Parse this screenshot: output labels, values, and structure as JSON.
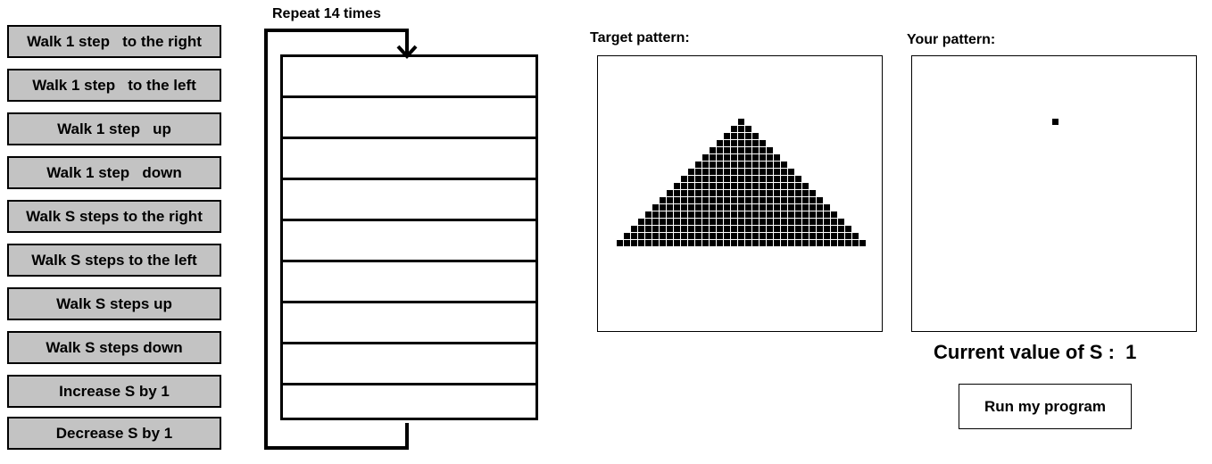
{
  "commands": [
    "Walk 1 step   to the right",
    "Walk 1 step   to the left",
    "Walk 1 step   up",
    "Walk 1 step   down",
    "Walk S steps to the right",
    "Walk S steps to the left",
    "Walk S steps up",
    "Walk S steps down",
    "Increase S by 1",
    "Decrease S by 1"
  ],
  "loop": {
    "label": "Repeat 14 times",
    "slots": [
      "",
      "",
      "",
      "",
      "",
      "",
      "",
      "",
      ""
    ]
  },
  "target": {
    "label": "Target pattern:",
    "pattern_rows": [
      {
        "row": 0,
        "from": 0,
        "to": 0
      },
      {
        "row": 1,
        "from": -1,
        "to": 1
      },
      {
        "row": 2,
        "from": -2,
        "to": 2
      },
      {
        "row": 3,
        "from": -3,
        "to": 3
      },
      {
        "row": 4,
        "from": -4,
        "to": 4
      },
      {
        "row": 5,
        "from": -5,
        "to": 5
      },
      {
        "row": 6,
        "from": -6,
        "to": 6
      },
      {
        "row": 7,
        "from": -7,
        "to": 7
      },
      {
        "row": 8,
        "from": -8,
        "to": 8
      },
      {
        "row": 9,
        "from": -9,
        "to": 9
      },
      {
        "row": 10,
        "from": -10,
        "to": 10
      },
      {
        "row": 11,
        "from": -11,
        "to": 11
      },
      {
        "row": 12,
        "from": -12,
        "to": 12
      },
      {
        "row": 13,
        "from": -13,
        "to": 13
      },
      {
        "row": 14,
        "from": -14,
        "to": 14
      },
      {
        "row": 15,
        "from": -15,
        "to": 15
      },
      {
        "row": 16,
        "from": -16,
        "to": 16
      },
      {
        "row": 17,
        "from": -17,
        "to": 17
      }
    ]
  },
  "yours": {
    "label": "Your pattern:",
    "filled_cells": [
      {
        "row": 0,
        "col": 0
      }
    ]
  },
  "state": {
    "s_label": "Current value of S :  1"
  },
  "run_button": "Run my program"
}
